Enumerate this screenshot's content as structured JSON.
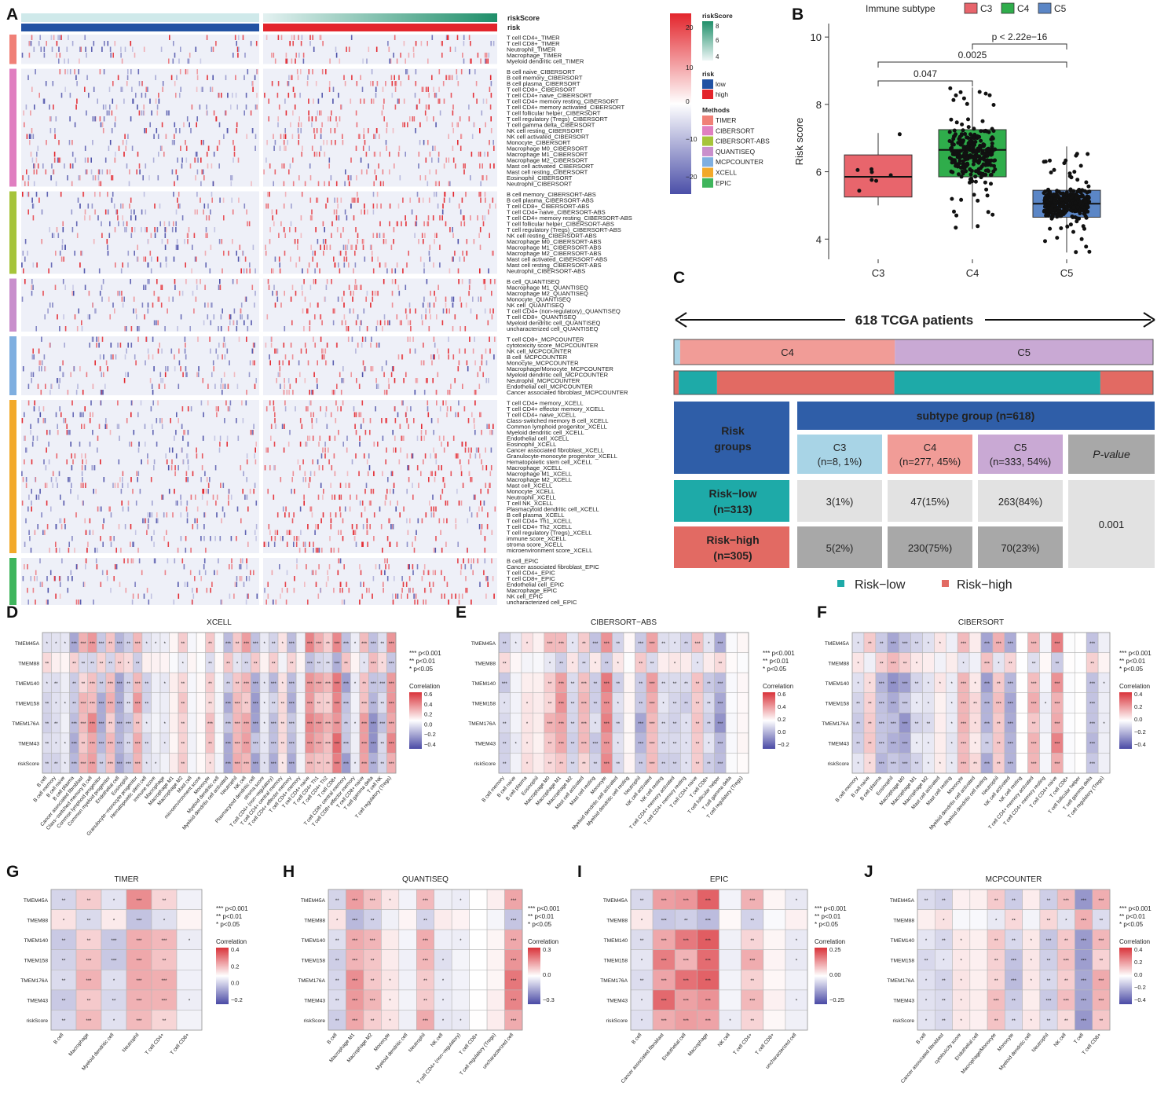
{
  "panels": [
    "A",
    "B",
    "C",
    "D",
    "E",
    "F",
    "G",
    "H",
    "I",
    "J"
  ],
  "colors": {
    "low": "#2152a3",
    "high": "#e3252c",
    "C3": "#e8656c",
    "C4": "#2fad4b",
    "C5": "#5b86c6",
    "methods": [
      "#f08077",
      "#e07fc0",
      "#a6c43a",
      "#c98fcc",
      "#7fafe0",
      "#f2a92a",
      "#3fb55c"
    ],
    "teal": "#1eaaa8",
    "salmon": "#e26a63",
    "navy": "#2f5ea8"
  },
  "panelA": {
    "top_labels": [
      "riskScore",
      "risk"
    ],
    "method_groups": [
      {
        "name": "TIMER",
        "rows": [
          "T cell CD4+_TIMER",
          "T cell CD8+_TIMER",
          "Neutrophil_TIMER",
          "Macrophage_TIMER",
          "Myeloid dendritic cell_TIMER"
        ]
      },
      {
        "name": "CIBERSORT",
        "rows": [
          "B cell naive_CIBERSORT",
          "B cell memory_CIBERSORT",
          "B cell plasma_CIBERSORT",
          "T cell CD8+_CIBERSORT",
          "T cell CD4+ naive_CIBERSORT",
          "T cell CD4+ memory resting_CIBERSORT",
          "T cell CD4+ memory activated_CIBERSORT",
          "T cell follicular helper_CIBERSORT",
          "T cell regulatory (Tregs)_CIBERSORT",
          "T cell gamma delta_CIBERSORT",
          "NK cell resting_CIBERSORT",
          "NK cell activated_CIBERSORT",
          "Monocyte_CIBERSORT",
          "Macrophage M0_CIBERSORT",
          "Macrophage M1_CIBERSORT",
          "Macrophage M2_CIBERSORT",
          "Mast cell activated_CIBERSORT",
          "Mast cell resting_CIBERSORT",
          "Eosinophil_CIBERSORT",
          "Neutrophil_CIBERSORT"
        ]
      },
      {
        "name": "CIBERSORT-ABS",
        "rows": [
          "B cell memory_CIBERSORT-ABS",
          "B cell plasma_CIBERSORT-ABS",
          "T cell CD8+_CIBERSORT-ABS",
          "T cell CD4+ naive_CIBERSORT-ABS",
          "T cell CD4+ memory resting_CIBERSORT-ABS",
          "T cell follicular helper_CIBERSORT-ABS",
          "T cell regulatory (Tregs)_CIBERSORT-ABS",
          "NK cell resting_CIBERSORT-ABS",
          "Macrophage M0_CIBERSORT-ABS",
          "Macrophage M1_CIBERSORT-ABS",
          "Macrophage M2_CIBERSORT-ABS",
          "Mast cell activated_CIBERSORT-ABS",
          "Mast cell resting_CIBERSORT-ABS",
          "Neutrophil_CIBERSORT-ABS"
        ]
      },
      {
        "name": "QUANTISEQ",
        "rows": [
          "B cell_QUANTISEQ",
          "Macrophage M1_QUANTISEQ",
          "Macrophage M2_QUANTISEQ",
          "Monocyte_QUANTISEQ",
          "NK cell_QUANTISEQ",
          "T cell CD4+ (non-regulatory)_QUANTISEQ",
          "T cell CD8+_QUANTISEQ",
          "Myeloid dendritic cell_QUANTISEQ",
          "uncharacterized cell_QUANTISEQ"
        ]
      },
      {
        "name": "MCPCOUNTER",
        "rows": [
          "T cell CD8+_MCPCOUNTER",
          "cytotoxicity score_MCPCOUNTER",
          "NK cell_MCPCOUNTER",
          "B cell_MCPCOUNTER",
          "Monocyte_MCPCOUNTER",
          "Macrophage/Monocyte_MCPCOUNTER",
          "Myeloid dendritic cell_MCPCOUNTER",
          "Neutrophil_MCPCOUNTER",
          "Endothelial cell_MCPCOUNTER",
          "Cancer associated fibroblast_MCPCOUNTER"
        ]
      },
      {
        "name": "XCELL",
        "rows": [
          "T cell CD4+ memory_XCELL",
          "T cell CD4+ effector memory_XCELL",
          "T cell CD4+ naive_XCELL",
          "Class-switched memory B cell_XCELL",
          "Common lymphoid progenitor_XCELL",
          "Myeloid dendritic cell_XCELL",
          "Endothelial cell_XCELL",
          "Eosinophil_XCELL",
          "Cancer associated fibroblast_XCELL",
          "Granulocyte-monocyte progenitor_XCELL",
          "Hematopoietic stem cell_XCELL",
          "Macrophage_XCELL",
          "Macrophage M1_XCELL",
          "Macrophage M2_XCELL",
          "Mast cell_XCELL",
          "Monocyte_XCELL",
          "Neutrophil_XCELL",
          "T cell NK_XCELL",
          "Plasmacytoid dendritic cell_XCELL",
          "B cell plasma_XCELL",
          "T cell CD4+ Th1_XCELL",
          "T cell CD4+ Th2_XCELL",
          "T cell regulatory (Tregs)_XCELL",
          "immune score_XCELL",
          "stroma score_XCELL",
          "microenvironment score_XCELL"
        ]
      },
      {
        "name": "EPIC",
        "rows": [
          "B cell_EPIC",
          "Cancer associated fibroblast_EPIC",
          "T cell CD4+_EPIC",
          "T cell CD8+_EPIC",
          "Endothelial cell_EPIC",
          "Macrophage_EPIC",
          "NK cell_EPIC",
          "uncharacterized cell_EPIC"
        ]
      }
    ],
    "legend": {
      "riskScore_title": "riskScore",
      "riskScore_ticks": [
        "8",
        "6",
        "4"
      ],
      "risk_title": "risk",
      "risk_levels": [
        "low",
        "high"
      ],
      "methods_title": "Methods",
      "methods": [
        "TIMER",
        "CIBERSORT",
        "CIBERSORT-ABS",
        "QUANTISEQ",
        "MCPCOUNTER",
        "XCELL",
        "EPIC"
      ],
      "scale_ticks": [
        "20",
        "10",
        "0",
        "−10",
        "−20"
      ]
    }
  },
  "chart_data": [
    {
      "panel": "B",
      "type": "box",
      "title": "",
      "legend_title": "Immune subtype",
      "legend": [
        "C3",
        "C4",
        "C5"
      ],
      "xlabel": "",
      "ylabel": "Risk score",
      "ylim": [
        3.4,
        10.4
      ],
      "yticks": [
        4,
        6,
        8,
        10
      ],
      "categories": [
        "C3",
        "C4",
        "C5"
      ],
      "boxes": [
        {
          "group": "C3",
          "n": 8,
          "min": 5.0,
          "q1": 5.25,
          "median": 5.85,
          "q3": 6.5,
          "max": 7.15
        },
        {
          "group": "C4",
          "n": 277,
          "min": 4.3,
          "q1": 5.85,
          "median": 6.65,
          "q3": 7.25,
          "max": 8.5
        },
        {
          "group": "C5",
          "n": 333,
          "min": 3.6,
          "q1": 4.65,
          "median": 5.05,
          "q3": 5.45,
          "max": 6.75
        }
      ],
      "annotations": [
        {
          "from": "C3",
          "to": "C4",
          "text": "0.047"
        },
        {
          "from": "C3",
          "to": "C5",
          "text": "0.0025"
        },
        {
          "from": "C4",
          "to": "C5",
          "text": "p < 2.22e−16"
        }
      ]
    },
    {
      "panel": "C",
      "type": "table",
      "title": "618 TCGA patients",
      "subtype_bar": [
        {
          "label": "C3",
          "n": 8
        },
        {
          "label": "C4",
          "n": 277
        },
        {
          "label": "C5",
          "n": 333
        }
      ],
      "header": "subtype group (n=618)",
      "row_header": "Risk groups",
      "columns": [
        {
          "name": "C3",
          "sub": "(n=8, 1%)"
        },
        {
          "name": "C4",
          "sub": "(n=277, 45%)"
        },
        {
          "name": "C5",
          "sub": "(n=333, 54%)"
        }
      ],
      "pvalue_header": "P-value",
      "pvalue": "0.001",
      "rows": [
        {
          "name": "Risk−low",
          "sub": "(n=313)",
          "cells": [
            "3(1%)",
            "47(15%)",
            "263(84%)"
          ]
        },
        {
          "name": "Risk−high",
          "sub": "(n=305)",
          "cells": [
            "5(2%)",
            "230(75%)",
            "70(23%)"
          ]
        }
      ],
      "legend": [
        "Risk−low",
        "Risk−high"
      ]
    },
    {
      "panel": "D",
      "type": "heatmap",
      "title": "XCELL",
      "rows": [
        "TMEM45A",
        "TMEM88",
        "TMEM140",
        "TMEM158",
        "TMEM176A",
        "TMEM43",
        "riskScore"
      ],
      "columns": [
        "B cell",
        "B cell memory",
        "B cell naive",
        "B cell plasma",
        "Cancer associated fibroblast",
        "Class−switched memory B cell",
        "Common lymphoid progenitor",
        "Common myeloid progenitor",
        "Endothelial cell",
        "Eosinophil",
        "Granulocyte−monocyte progenitor",
        "Hematopoietic stem cell",
        "immune score",
        "Macrophage",
        "Macrophage M1",
        "Macrophage M2",
        "Mast cell",
        "microenvironment score",
        "Monocyte",
        "Myeloid dendritic cell",
        "Myeloid dendritic cell activated",
        "Neutrophil",
        "NK cell",
        "Plasmacytoid dendritic cell",
        "stroma score",
        "T cell CD4+ (non−regulatory)",
        "T cell CD4+ central memory",
        "T cell CD4+ effector memory",
        "T cell CD4+ memory",
        "T cell CD4+ naive",
        "T cell CD4+ Th1",
        "T cell CD4+ Th2",
        "T cell CD8+",
        "T cell CD8+ central memory",
        "T cell CD8+ effector memory",
        "T cell CD8+ naive",
        "T cell gamma delta",
        "T cell NK",
        "T cell regulatory (Tregs)"
      ],
      "colorbar_ticks": [
        "0.6",
        "0.4",
        "0.2",
        "0.0",
        "−0.2",
        "−0.4"
      ],
      "seed": 11
    },
    {
      "panel": "E",
      "type": "heatmap",
      "title": "CIBERSORT−ABS",
      "rows": [
        "TMEM45A",
        "TMEM88",
        "TMEM140",
        "TMEM158",
        "TMEM176A",
        "TMEM43",
        "riskScore"
      ],
      "columns": [
        "B cell memory",
        "B cell naive",
        "B cell plasma",
        "Eosinophil",
        "Macrophage M0",
        "Macrophage M1",
        "Macrophage M2",
        "Mast cell activated",
        "Mast cell resting",
        "Monocyte",
        "Myeloid dendritic cell activated",
        "Myeloid dendritic cell resting",
        "Neutrophil",
        "NK cell activated",
        "NK cell resting",
        "T cell CD4+ memory activated",
        "T cell CD4+ memory resting",
        "T cell CD4+ naive",
        "T cell CD8+",
        "T cell follicular helper",
        "T cell gamma delta",
        "T cell regulatory (Tregs)"
      ],
      "colorbar_ticks": [
        "0.6",
        "0.4",
        "0.2",
        "0.0",
        "−0.2"
      ],
      "seed": 23
    },
    {
      "panel": "F",
      "type": "heatmap",
      "title": "CIBERSORT",
      "rows": [
        "TMEM45A",
        "TMEM88",
        "TMEM140",
        "TMEM158",
        "TMEM176A",
        "TMEM43",
        "riskScore"
      ],
      "columns": [
        "B cell memory",
        "B cell naive",
        "B cell plasma",
        "Eosinophil",
        "Macrophage M0",
        "Macrophage M1",
        "Macrophage M2",
        "Mast cell activated",
        "Mast cell resting",
        "Monocyte",
        "Myeloid dendritic cell activated",
        "Myeloid dendritic cell resting",
        "Neutrophil",
        "NK cell activated",
        "NK cell resting",
        "T cell CD4+ memory activated",
        "T cell CD4+ memory resting",
        "T cell CD4+ naive",
        "T cell CD8+",
        "T cell follicular helper",
        "T cell gamma delta",
        "T cell regulatory (Tregs)"
      ],
      "colorbar_ticks": [
        "0.4",
        "0.2",
        "0.0",
        "−0.2",
        "−0.4"
      ],
      "seed": 37
    },
    {
      "panel": "G",
      "type": "heatmap",
      "title": "TIMER",
      "rows": [
        "TMEM45A",
        "TMEM88",
        "TMEM140",
        "TMEM158",
        "TMEM176A",
        "TMEM43",
        "riskScore"
      ],
      "columns": [
        "B cell",
        "Macrophage",
        "Myeloid dendritic cell",
        "Neutrophil",
        "T cell CD4+",
        "T cell CD8+"
      ],
      "colorbar_ticks": [
        "0.4",
        "0.2",
        "0.0",
        "−0.2"
      ],
      "seed": 5
    },
    {
      "panel": "H",
      "type": "heatmap",
      "title": "QUANTISEQ",
      "rows": [
        "TMEM45A",
        "TMEM88",
        "TMEM140",
        "TMEM158",
        "TMEM176A",
        "TMEM43",
        "riskScore"
      ],
      "columns": [
        "B cell",
        "Macrophage M1",
        "Macrophage M2",
        "Monocyte",
        "Myeloid dendritic cell",
        "Neutrophil",
        "NK cell",
        "T cell CD4+ (non−regulatory)",
        "T cell CD8+",
        "T cell regulatory (Tregs)",
        "uncharacterized cell"
      ],
      "colorbar_ticks": [
        "0.3",
        "0.0",
        "−0.3"
      ],
      "seed": 51
    },
    {
      "panel": "I",
      "type": "heatmap",
      "title": "EPIC",
      "rows": [
        "TMEM45A",
        "TMEM88",
        "TMEM140",
        "TMEM158",
        "TMEM176A",
        "TMEM43",
        "riskScore"
      ],
      "columns": [
        "B cell",
        "Cancer associated fibroblast",
        "Endothelial cell",
        "Macrophage",
        "NK cell",
        "T cell CD4+",
        "T cell CD8+",
        "uncharacterized cell"
      ],
      "colorbar_ticks": [
        "0.25",
        "0.00",
        "−0.25"
      ],
      "seed": 63
    },
    {
      "panel": "J",
      "type": "heatmap",
      "title": "MCPCOUNTER",
      "rows": [
        "TMEM45A",
        "TMEM88",
        "TMEM140",
        "TMEM158",
        "TMEM176A",
        "TMEM43",
        "riskScore"
      ],
      "columns": [
        "B cell",
        "Cancer associated fibroblast",
        "cytotoxicity score",
        "Endothelial cell",
        "Macrophage/Monocyte",
        "Monocyte",
        "Myeloid dendritic cell",
        "Neutrophil",
        "NK cell",
        "T cell",
        "T cell CD8+"
      ],
      "colorbar_ticks": [
        "0.4",
        "0.2",
        "0.0",
        "−0.2",
        "−0.4"
      ],
      "seed": 77
    }
  ],
  "sig_legend": [
    "***  p<0.001",
    "**  p<0.01",
    "*  p<0.05"
  ],
  "corr_label": "Correlation"
}
